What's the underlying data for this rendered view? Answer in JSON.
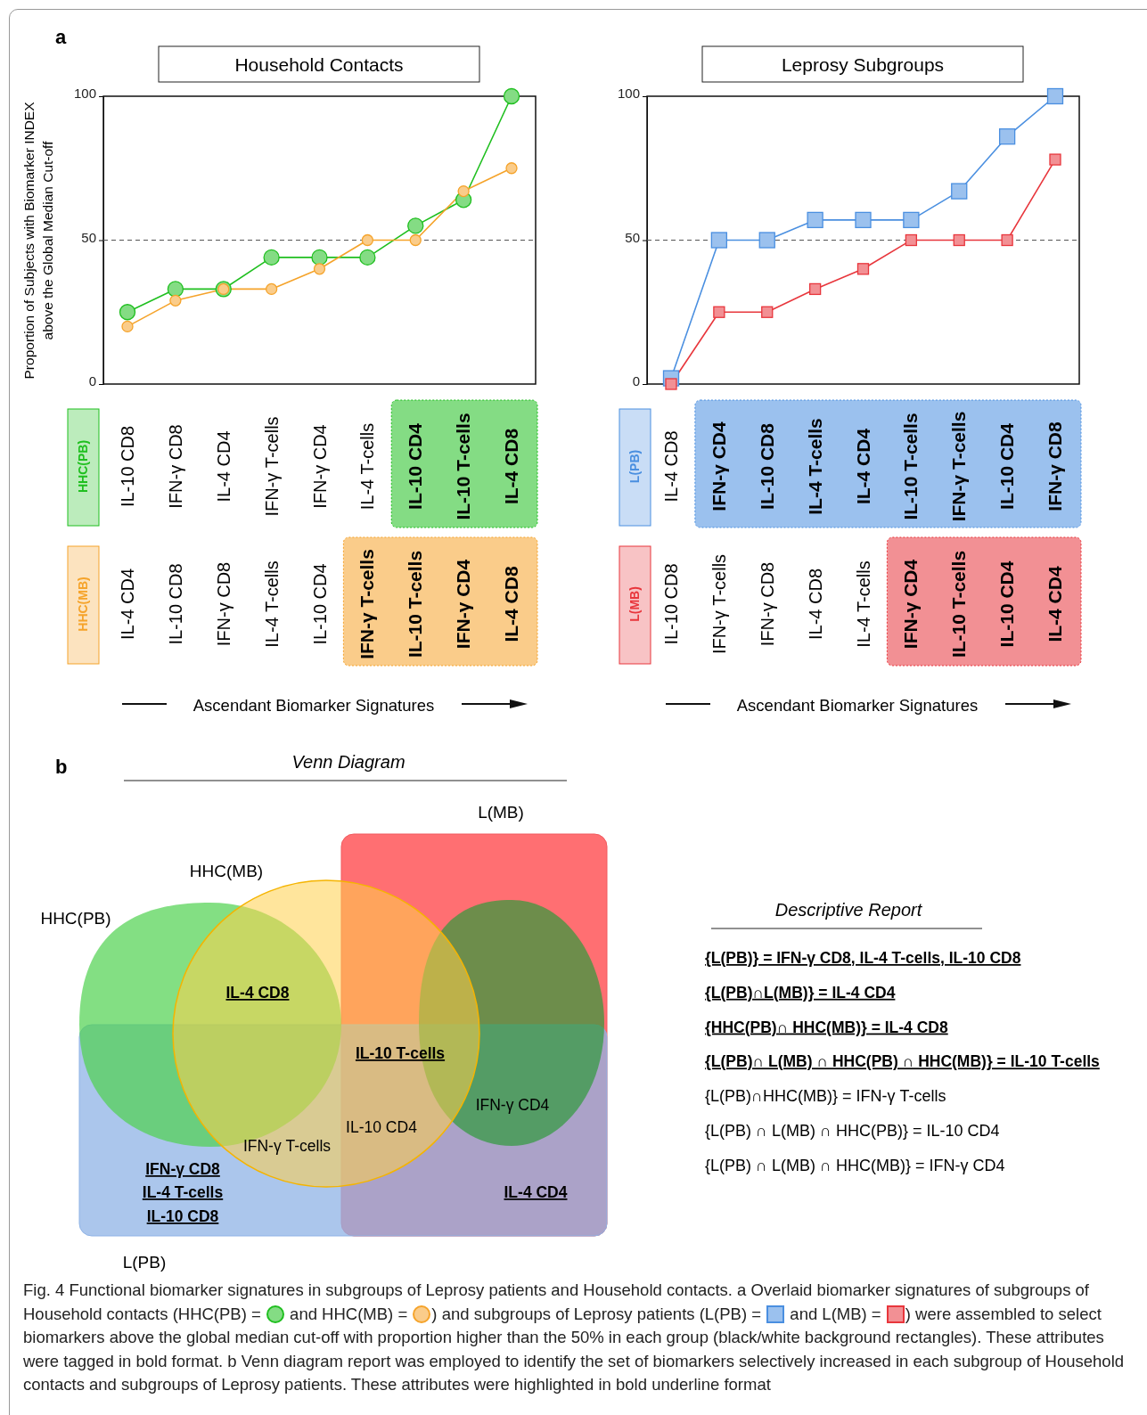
{
  "chart_data": [
    {
      "type": "line",
      "title": "Household Contacts",
      "ylabel": "Proportion of Subjects  with Biomarker INDEX\nabove the Global Median Cut-off",
      "categories": [
        null,
        null,
        null,
        null,
        null,
        null,
        null,
        null,
        null
      ],
      "ylim": [
        0,
        100
      ],
      "yticks": [
        0,
        50,
        100
      ],
      "marker": "circle",
      "legend": false,
      "series": [
        {
          "name": "HHC(PB)",
          "color": "#1fbf1f",
          "values": [
            25,
            33,
            33,
            44,
            44,
            44,
            55,
            64,
            100
          ]
        },
        {
          "name": "HHC(MB)",
          "color": "#f5a32a",
          "values": [
            20,
            29,
            33,
            33,
            40,
            50,
            50,
            67,
            75
          ]
        }
      ],
      "ref_lines": [
        {
          "axis": "y",
          "value": 50,
          "line_style": "dashed",
          "color": "#555555"
        }
      ],
      "annotations": [
        "a",
        "IL-10 CD8",
        "IFN-γ CD8",
        "IL-4 CD4",
        "IFN-γ T-cells",
        "IFN-γ CD4",
        "IL-4  T-cells",
        "IL-10 CD4",
        "IL-10 T-cells",
        "IL-4 CD8",
        "IL-4 CD4",
        "IL-10 CD8",
        "IFN-γ CD8",
        "IL-4 T-cells",
        "IL-10 CD4",
        "IFN-γ T-cells",
        "IL-10 T-cells",
        "IFN-γ CD4",
        "IL-4 CD8",
        "Ascendant Biomarker Signatures"
      ]
    },
    {
      "type": "line",
      "title": "Leprosy Subgroups",
      "categories": [
        null,
        null,
        null,
        null,
        null,
        null,
        null,
        null,
        null
      ],
      "ylim": [
        0,
        100
      ],
      "yticks": [
        0,
        50,
        100
      ],
      "marker": "square",
      "legend": false,
      "series": [
        {
          "name": "L(PB)",
          "color": "#4a8fe0",
          "values": [
            2,
            50,
            50,
            57,
            57,
            57,
            67,
            86,
            100
          ]
        },
        {
          "name": "L(MB)",
          "color": "#e8363c",
          "values": [
            0,
            25,
            25,
            33,
            40,
            50,
            50,
            50,
            78
          ]
        }
      ],
      "ref_lines": [
        {
          "axis": "y",
          "value": 50,
          "line_style": "dashed",
          "color": "#555555"
        }
      ],
      "annotations": [
        "IL-4 CD8",
        "IFN-γ CD4",
        "IL-10 CD8",
        "IL-4 T-cells",
        "IL-4 CD4",
        "IL-10 T-cells",
        "IFN-γ T-cells",
        "IL-10 CD4",
        "IFN-γ CD8",
        "IL-10 CD8",
        "IFN-γ T-cells",
        "IFN-γ CD8",
        "IL-4 CD8",
        "IL-4 T-cells",
        "IFN-γ CD4",
        "IL-10 T-cells",
        "IL-10 CD4",
        "IL-4 CD4",
        "Ascendant Biomarker Signatures"
      ]
    },
    {
      "type": "other",
      "title": "Venn Diagram",
      "annotations": [
        "b",
        "L(MB)",
        "HHC(MB)",
        "HHC(PB)",
        "L(PB)",
        "IL-4 CD8",
        "IL-10 T-cells",
        "IFN-γ  CD4",
        "IL-10 CD4",
        "IFN-γ T-cells",
        "IFN-γ CD8",
        "IL-4 T-cells",
        "IL-10 CD8",
        "IL-4 CD4",
        "Descriptive Report",
        "{L(PB)} = IFN-γ CD8, IL-4 T-cells, IL-10 CD8",
        "{L(PB)∩L(MB)} = IL-4 CD4",
        "{HHC(PB)∩ HHC(MB)} = IL-4 CD8",
        "{L(PB)∩ L(MB) ∩ HHC(PB) ∩ HHC(MB)} = IL-10 T-cells",
        "{L(PB)∩HHC(MB)} = IFN-γ T-cells",
        "{L(PB) ∩ L(MB) ∩ HHC(PB)} = IL-10 CD4",
        "{L(PB) ∩ L(MB) ∩ HHC(MB)} = IFN-γ CD4",
        "Fig. 4  Functional biomarker signatures in subgroups of Leprosy patients and Household contacts. a Overlaid biomarker signatures of subgroups of Household contacts (HHC(PB) = ",
        " and HHC(MB) = ",
        ") and subgroups of Leprosy patients (L(PB) = ",
        " and L(MB) = ",
        ") were assembled to select biomarkers above the global median cut-off with proportion higher than the 50% in each group (black/white background rectangles). These attributes were tagged in bold format. b Venn diagram report was employed to identify the set of biomarkers selectively increased in each subgroup of Household contacts and subgroups of Leprosy patients. These attributes were highlighted in bold underline format"
      ]
    }
  ]
}
